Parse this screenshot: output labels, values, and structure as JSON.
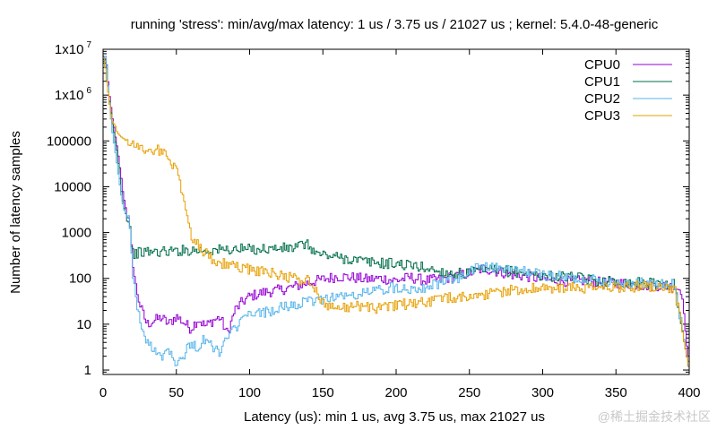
{
  "chart_data": {
    "type": "line",
    "title": "running 'stress': min/avg/max latency: 1 us / 3.75 us / 21027 us ; kernel: 5.4.0-48-generic",
    "xlabel": "Latency (us): min 1 us, avg 3.75 us, max 21027 us",
    "ylabel": "Number of latency samples",
    "xlim": [
      0,
      400
    ],
    "ylim": [
      0.8,
      10000000
    ],
    "yscale": "log",
    "legend_position": "top-right",
    "x_ticks": [
      {
        "value": 0,
        "label": "0"
      },
      {
        "value": 50,
        "label": "50"
      },
      {
        "value": 100,
        "label": "100"
      },
      {
        "value": 150,
        "label": "150"
      },
      {
        "value": 200,
        "label": "200"
      },
      {
        "value": 250,
        "label": "250"
      },
      {
        "value": 300,
        "label": "300"
      },
      {
        "value": 350,
        "label": "350"
      },
      {
        "value": 400,
        "label": "400"
      }
    ],
    "y_ticks": [
      {
        "value": 1,
        "label": "1",
        "sup": ""
      },
      {
        "value": 10,
        "label": "10",
        "sup": ""
      },
      {
        "value": 100,
        "label": "100",
        "sup": ""
      },
      {
        "value": 1000,
        "label": "1000",
        "sup": ""
      },
      {
        "value": 10000,
        "label": "10000",
        "sup": ""
      },
      {
        "value": 100000,
        "label": "100000",
        "sup": ""
      },
      {
        "value": 1000000,
        "label": "1x10",
        "sup": "6"
      },
      {
        "value": 10000000,
        "label": "1x10",
        "sup": "7"
      }
    ],
    "series": [
      {
        "name": "CPU0",
        "color": "#9400d3",
        "points": [
          [
            0,
            5000000
          ],
          [
            2,
            7000000
          ],
          [
            4,
            1200000
          ],
          [
            6,
            400000
          ],
          [
            8,
            150000
          ],
          [
            10,
            60000
          ],
          [
            12,
            20000
          ],
          [
            14,
            6000
          ],
          [
            16,
            3000
          ],
          [
            18,
            1500
          ],
          [
            20,
            300
          ],
          [
            22,
            80
          ],
          [
            24,
            40
          ],
          [
            26,
            22
          ],
          [
            28,
            15
          ],
          [
            30,
            10
          ],
          [
            35,
            12
          ],
          [
            40,
            14
          ],
          [
            45,
            10
          ],
          [
            50,
            15
          ],
          [
            55,
            11
          ],
          [
            60,
            8
          ],
          [
            65,
            13
          ],
          [
            70,
            9
          ],
          [
            75,
            12
          ],
          [
            80,
            14
          ],
          [
            85,
            6
          ],
          [
            90,
            20
          ],
          [
            95,
            30
          ],
          [
            100,
            40
          ],
          [
            110,
            50
          ],
          [
            120,
            55
          ],
          [
            130,
            65
          ],
          [
            140,
            80
          ],
          [
            150,
            95
          ],
          [
            160,
            110
          ],
          [
            170,
            105
          ],
          [
            180,
            95
          ],
          [
            190,
            100
          ],
          [
            200,
            90
          ],
          [
            210,
            105
          ],
          [
            220,
            90
          ],
          [
            230,
            95
          ],
          [
            240,
            110
          ],
          [
            250,
            130
          ],
          [
            260,
            165
          ],
          [
            270,
            140
          ],
          [
            280,
            120
          ],
          [
            290,
            110
          ],
          [
            300,
            95
          ],
          [
            310,
            90
          ],
          [
            320,
            85
          ],
          [
            330,
            90
          ],
          [
            340,
            80
          ],
          [
            350,
            80
          ],
          [
            360,
            75
          ],
          [
            370,
            70
          ],
          [
            380,
            70
          ],
          [
            390,
            65
          ],
          [
            395,
            55
          ],
          [
            400,
            1
          ]
        ]
      },
      {
        "name": "CPU1",
        "color": "#006e4b",
        "points": [
          [
            0,
            5000000
          ],
          [
            2,
            6000000
          ],
          [
            4,
            1000000
          ],
          [
            6,
            300000
          ],
          [
            8,
            120000
          ],
          [
            10,
            50000
          ],
          [
            12,
            10000
          ],
          [
            14,
            4000
          ],
          [
            16,
            2200
          ],
          [
            18,
            2000
          ],
          [
            20,
            350
          ],
          [
            25,
            360
          ],
          [
            30,
            380
          ],
          [
            40,
            380
          ],
          [
            50,
            400
          ],
          [
            60,
            420
          ],
          [
            70,
            410
          ],
          [
            80,
            420
          ],
          [
            90,
            430
          ],
          [
            100,
            430
          ],
          [
            110,
            440
          ],
          [
            120,
            450
          ],
          [
            130,
            460
          ],
          [
            138,
            560
          ],
          [
            142,
            480
          ],
          [
            145,
            350
          ],
          [
            150,
            330
          ],
          [
            160,
            290
          ],
          [
            170,
            260
          ],
          [
            180,
            230
          ],
          [
            190,
            215
          ],
          [
            200,
            210
          ],
          [
            210,
            190
          ],
          [
            220,
            170
          ],
          [
            230,
            140
          ],
          [
            240,
            125
          ],
          [
            250,
            130
          ],
          [
            260,
            150
          ],
          [
            270,
            150
          ],
          [
            280,
            140
          ],
          [
            290,
            130
          ],
          [
            300,
            115
          ],
          [
            310,
            110
          ],
          [
            320,
            105
          ],
          [
            330,
            95
          ],
          [
            340,
            90
          ],
          [
            350,
            85
          ],
          [
            360,
            80
          ],
          [
            370,
            80
          ],
          [
            380,
            75
          ],
          [
            390,
            75
          ],
          [
            400,
            1
          ]
        ]
      },
      {
        "name": "CPU2",
        "color": "#56b4e9",
        "points": [
          [
            0,
            6000000
          ],
          [
            2,
            7500000
          ],
          [
            4,
            1000000
          ],
          [
            6,
            200000
          ],
          [
            8,
            70000
          ],
          [
            10,
            25000
          ],
          [
            12,
            8000
          ],
          [
            14,
            3500
          ],
          [
            16,
            2400
          ],
          [
            18,
            2200
          ],
          [
            20,
            150
          ],
          [
            22,
            50
          ],
          [
            24,
            20
          ],
          [
            26,
            9
          ],
          [
            28,
            5
          ],
          [
            30,
            4
          ],
          [
            35,
            3
          ],
          [
            40,
            2
          ],
          [
            45,
            3
          ],
          [
            50,
            1.5
          ],
          [
            55,
            2
          ],
          [
            60,
            4
          ],
          [
            65,
            3
          ],
          [
            70,
            5
          ],
          [
            75,
            3
          ],
          [
            80,
            2.5
          ],
          [
            85,
            5
          ],
          [
            90,
            8
          ],
          [
            95,
            12
          ],
          [
            100,
            16
          ],
          [
            110,
            18
          ],
          [
            120,
            22
          ],
          [
            130,
            26
          ],
          [
            140,
            30
          ],
          [
            150,
            36
          ],
          [
            160,
            42
          ],
          [
            170,
            40
          ],
          [
            180,
            50
          ],
          [
            190,
            58
          ],
          [
            200,
            65
          ],
          [
            210,
            60
          ],
          [
            220,
            65
          ],
          [
            230,
            80
          ],
          [
            240,
            95
          ],
          [
            250,
            120
          ],
          [
            255,
            200
          ],
          [
            260,
            180
          ],
          [
            270,
            165
          ],
          [
            280,
            150
          ],
          [
            290,
            140
          ],
          [
            300,
            120
          ],
          [
            310,
            110
          ],
          [
            320,
            100
          ],
          [
            330,
            95
          ],
          [
            340,
            90
          ],
          [
            350,
            85
          ],
          [
            360,
            80
          ],
          [
            370,
            80
          ],
          [
            380,
            75
          ],
          [
            390,
            75
          ],
          [
            400,
            1
          ]
        ]
      },
      {
        "name": "CPU3",
        "color": "#e69f00",
        "points": [
          [
            0,
            8000000
          ],
          [
            2,
            3000000
          ],
          [
            4,
            800000
          ],
          [
            6,
            300000
          ],
          [
            8,
            220000
          ],
          [
            10,
            150000
          ],
          [
            14,
            110000
          ],
          [
            18,
            95000
          ],
          [
            22,
            80000
          ],
          [
            26,
            70000
          ],
          [
            30,
            62000
          ],
          [
            35,
            65000
          ],
          [
            40,
            60000
          ],
          [
            45,
            40000
          ],
          [
            50,
            25000
          ],
          [
            54,
            8000
          ],
          [
            58,
            2000
          ],
          [
            60,
            900
          ],
          [
            64,
            600
          ],
          [
            68,
            400
          ],
          [
            72,
            300
          ],
          [
            76,
            250
          ],
          [
            80,
            220
          ],
          [
            85,
            200
          ],
          [
            90,
            180
          ],
          [
            100,
            160
          ],
          [
            110,
            140
          ],
          [
            120,
            120
          ],
          [
            130,
            100
          ],
          [
            140,
            90
          ],
          [
            145,
            55
          ],
          [
            150,
            30
          ],
          [
            160,
            22
          ],
          [
            170,
            25
          ],
          [
            180,
            24
          ],
          [
            190,
            22
          ],
          [
            200,
            26
          ],
          [
            210,
            28
          ],
          [
            220,
            30
          ],
          [
            230,
            35
          ],
          [
            240,
            38
          ],
          [
            250,
            40
          ],
          [
            260,
            45
          ],
          [
            270,
            50
          ],
          [
            280,
            55
          ],
          [
            290,
            60
          ],
          [
            300,
            60
          ],
          [
            310,
            60
          ],
          [
            320,
            62
          ],
          [
            330,
            60
          ],
          [
            340,
            62
          ],
          [
            350,
            65
          ],
          [
            360,
            65
          ],
          [
            370,
            70
          ],
          [
            380,
            65
          ],
          [
            390,
            62
          ],
          [
            400,
            1
          ]
        ]
      }
    ]
  },
  "watermark": "@稀土掘金技术社区"
}
